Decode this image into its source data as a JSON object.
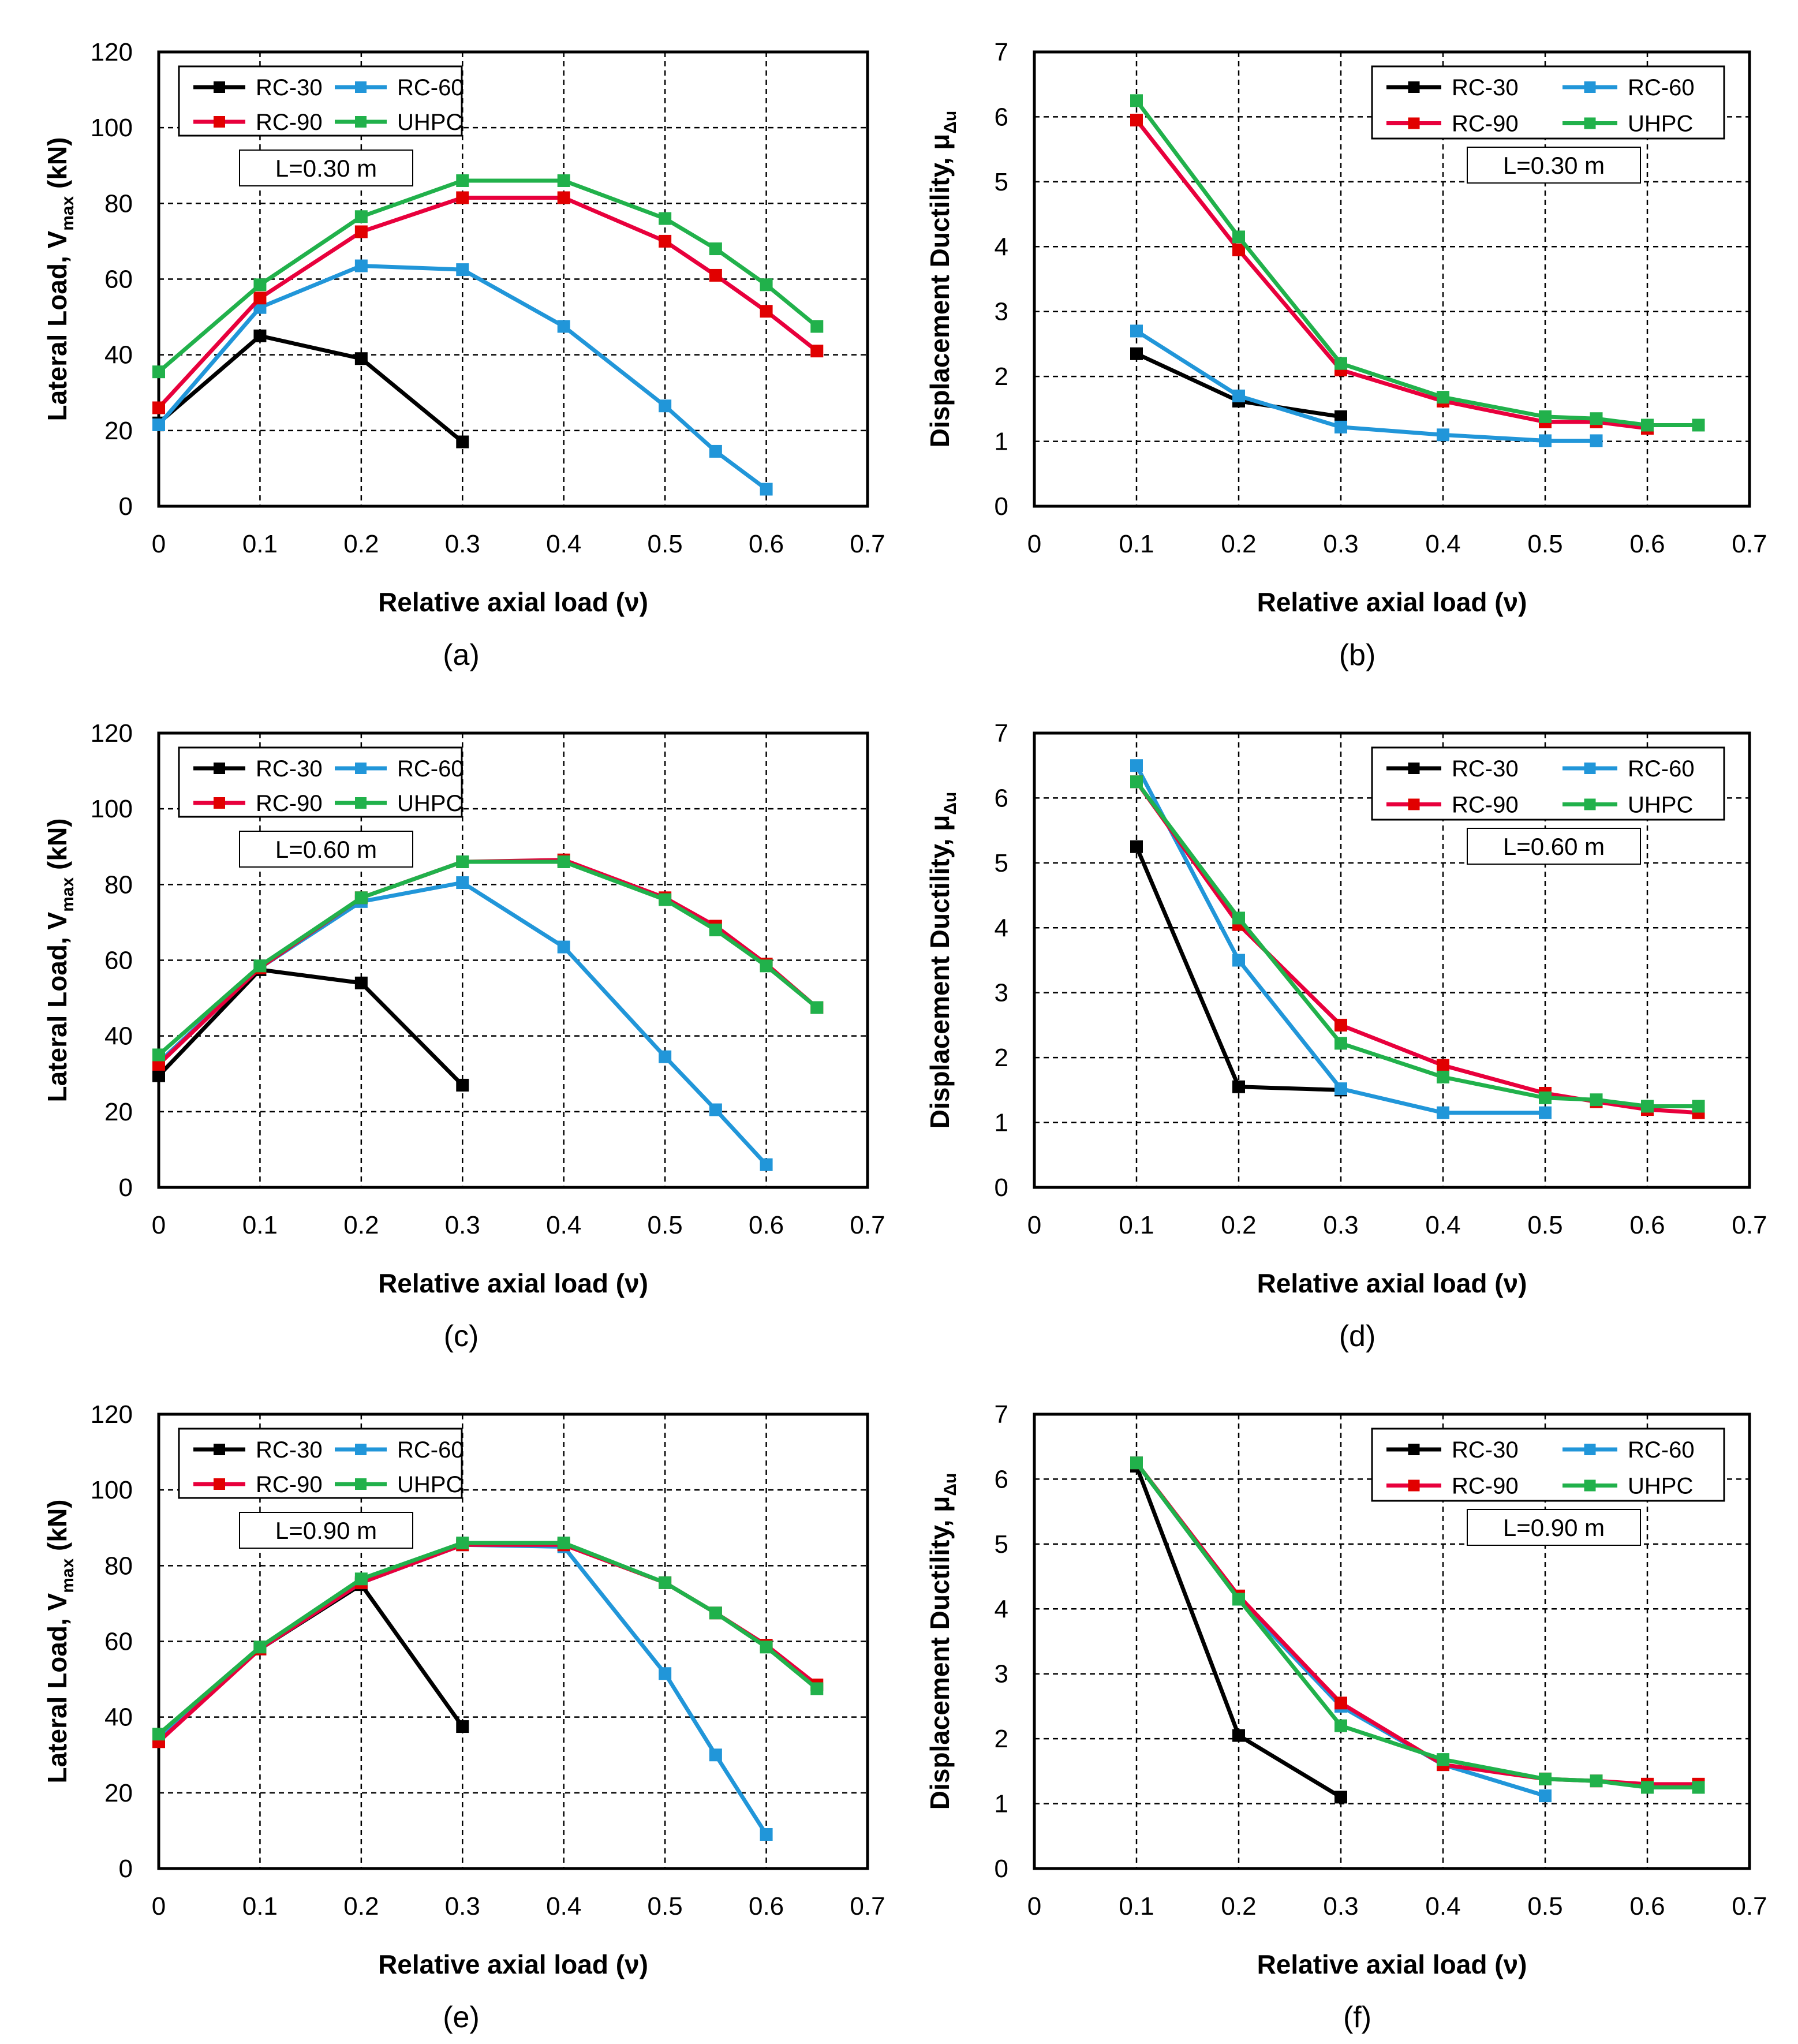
{
  "colors": {
    "RC-30": "#000000",
    "RC-60": "#2196d9",
    "RC-90": "#e8003c",
    "UHPC": "#21b14b",
    "marker_RC-90": "#e10000"
  },
  "chart_data": [
    {
      "id": "a",
      "caption": "(a)",
      "type": "line",
      "title": "",
      "xlabel": "Relative axial load (ν)",
      "ylabel_main": "Lateral Load, V",
      "ylabel_sub": "max",
      "ylabel_tail": " (kN)",
      "xlim": [
        0,
        0.7
      ],
      "ylim": [
        0,
        120
      ],
      "xticks": [
        "0",
        "0.1",
        "0.2",
        "0.3",
        "0.4",
        "0.5",
        "0.6",
        "0.7"
      ],
      "yticks": [
        "0",
        "20",
        "40",
        "60",
        "80",
        "100",
        "120"
      ],
      "annotation": "L=0.30 m",
      "legend": [
        "RC-30",
        "RC-60",
        "RC-90",
        "UHPC"
      ],
      "series": [
        {
          "name": "RC-30",
          "x": [
            0,
            0.1,
            0.2,
            0.3
          ],
          "y": [
            22,
            45,
            39,
            17
          ]
        },
        {
          "name": "RC-60",
          "x": [
            0,
            0.1,
            0.2,
            0.3,
            0.4,
            0.5,
            0.55,
            0.6
          ],
          "y": [
            21.5,
            52.5,
            63.5,
            62.5,
            47.5,
            26.5,
            14.5,
            4.5
          ]
        },
        {
          "name": "RC-90",
          "x": [
            0,
            0.1,
            0.2,
            0.3,
            0.4,
            0.5,
            0.55,
            0.6,
            0.65
          ],
          "y": [
            26,
            55,
            72.5,
            81.5,
            81.5,
            70,
            61,
            51.5,
            41
          ]
        },
        {
          "name": "UHPC",
          "x": [
            0,
            0.1,
            0.2,
            0.3,
            0.4,
            0.5,
            0.55,
            0.6,
            0.65
          ],
          "y": [
            35.5,
            58.5,
            76.5,
            86,
            86,
            76,
            68,
            58.5,
            47.5
          ]
        }
      ]
    },
    {
      "id": "b",
      "caption": "(b)",
      "type": "line",
      "title": "",
      "xlabel": "Relative axial load (ν)",
      "ylabel_main": "Displacement Ductility, μ",
      "ylabel_sub": "Δu",
      "ylabel_tail": "",
      "xlim": [
        0,
        0.7
      ],
      "ylim": [
        0,
        7
      ],
      "xticks": [
        "0",
        "0.1",
        "0.2",
        "0.3",
        "0.4",
        "0.5",
        "0.6",
        "0.7"
      ],
      "yticks": [
        "0",
        "1",
        "2",
        "3",
        "4",
        "5",
        "6",
        "7"
      ],
      "annotation": "L=0.30 m",
      "legend": [
        "RC-30",
        "RC-60",
        "RC-90",
        "UHPC"
      ],
      "series": [
        {
          "name": "RC-30",
          "x": [
            0.1,
            0.2,
            0.3
          ],
          "y": [
            2.35,
            1.62,
            1.38
          ]
        },
        {
          "name": "RC-60",
          "x": [
            0.1,
            0.2,
            0.3,
            0.4,
            0.5,
            0.55
          ],
          "y": [
            2.7,
            1.7,
            1.22,
            1.1,
            1.01,
            1.01
          ]
        },
        {
          "name": "RC-90",
          "x": [
            0.1,
            0.2,
            0.3,
            0.4,
            0.5,
            0.55,
            0.6
          ],
          "y": [
            5.95,
            3.95,
            2.1,
            1.62,
            1.3,
            1.3,
            1.2
          ]
        },
        {
          "name": "UHPC",
          "x": [
            0.1,
            0.2,
            0.3,
            0.4,
            0.5,
            0.55,
            0.6,
            0.65
          ],
          "y": [
            6.25,
            4.15,
            2.2,
            1.68,
            1.38,
            1.35,
            1.25,
            1.25
          ]
        }
      ]
    },
    {
      "id": "c",
      "caption": "(c)",
      "type": "line",
      "title": "",
      "xlabel": "Relative axial load (ν)",
      "ylabel_main": "Lateral Load, V",
      "ylabel_sub": "max",
      "ylabel_tail": " (kN)",
      "xlim": [
        0,
        0.7
      ],
      "ylim": [
        0,
        120
      ],
      "xticks": [
        "0",
        "0.1",
        "0.2",
        "0.3",
        "0.4",
        "0.5",
        "0.6",
        "0.7"
      ],
      "yticks": [
        "0",
        "20",
        "40",
        "60",
        "80",
        "100",
        "120"
      ],
      "annotation": "L=0.60 m",
      "legend": [
        "RC-30",
        "RC-60",
        "RC-90",
        "UHPC"
      ],
      "series": [
        {
          "name": "RC-30",
          "x": [
            0,
            0.1,
            0.2,
            0.3
          ],
          "y": [
            29.5,
            57.5,
            54,
            27
          ]
        },
        {
          "name": "RC-60",
          "x": [
            0,
            0.1,
            0.2,
            0.3,
            0.4,
            0.5,
            0.55,
            0.6
          ],
          "y": [
            33,
            58,
            75.5,
            80.5,
            63.5,
            34.5,
            20.5,
            6
          ]
        },
        {
          "name": "RC-90",
          "x": [
            0,
            0.1,
            0.2,
            0.3,
            0.4,
            0.5,
            0.55,
            0.6,
            0.65
          ],
          "y": [
            32.5,
            58,
            76.5,
            86,
            86.5,
            76.5,
            69,
            59,
            47.5
          ]
        },
        {
          "name": "UHPC",
          "x": [
            0,
            0.1,
            0.2,
            0.3,
            0.4,
            0.5,
            0.55,
            0.6,
            0.65
          ],
          "y": [
            35,
            58.5,
            76.5,
            86,
            86,
            76,
            68,
            58.5,
            47.5
          ]
        }
      ]
    },
    {
      "id": "d",
      "caption": "(d)",
      "type": "line",
      "title": "",
      "xlabel": "Relative axial load (ν)",
      "ylabel_main": "Displacement Ductility, μ",
      "ylabel_sub": "Δu",
      "ylabel_tail": "",
      "xlim": [
        0,
        0.7
      ],
      "ylim": [
        0,
        7
      ],
      "xticks": [
        "0",
        "0.1",
        "0.2",
        "0.3",
        "0.4",
        "0.5",
        "0.6",
        "0.7"
      ],
      "yticks": [
        "0",
        "1",
        "2",
        "3",
        "4",
        "5",
        "6",
        "7"
      ],
      "annotation": "L=0.60 m",
      "legend": [
        "RC-30",
        "RC-60",
        "RC-90",
        "UHPC"
      ],
      "series": [
        {
          "name": "RC-30",
          "x": [
            0.1,
            0.2,
            0.3
          ],
          "y": [
            5.25,
            1.55,
            1.5
          ]
        },
        {
          "name": "RC-60",
          "x": [
            0.1,
            0.2,
            0.3,
            0.4,
            0.5
          ],
          "y": [
            6.5,
            3.5,
            1.52,
            1.15,
            1.15
          ]
        },
        {
          "name": "RC-90",
          "x": [
            0.1,
            0.2,
            0.3,
            0.4,
            0.5,
            0.55,
            0.6,
            0.65
          ],
          "y": [
            6.25,
            4.05,
            2.5,
            1.88,
            1.45,
            1.32,
            1.2,
            1.15
          ]
        },
        {
          "name": "UHPC",
          "x": [
            0.1,
            0.2,
            0.3,
            0.4,
            0.5,
            0.55,
            0.6,
            0.65
          ],
          "y": [
            6.25,
            4.15,
            2.22,
            1.7,
            1.38,
            1.35,
            1.25,
            1.25
          ]
        }
      ]
    },
    {
      "id": "e",
      "caption": "(e)",
      "type": "line",
      "title": "",
      "xlabel": "Relative axial load (ν)",
      "ylabel_main": "Lateral Load, V",
      "ylabel_sub": "max",
      "ylabel_tail": " (kN)",
      "xlim": [
        0,
        0.7
      ],
      "ylim": [
        0,
        120
      ],
      "xticks": [
        "0",
        "0.1",
        "0.2",
        "0.3",
        "0.4",
        "0.5",
        "0.6",
        "0.7"
      ],
      "yticks": [
        "0",
        "20",
        "40",
        "60",
        "80",
        "100",
        "120"
      ],
      "annotation": "L=0.90 m",
      "legend": [
        "RC-30",
        "RC-60",
        "RC-90",
        "UHPC"
      ],
      "series": [
        {
          "name": "RC-30",
          "x": [
            0,
            0.1,
            0.2,
            0.3
          ],
          "y": [
            34,
            58,
            75,
            37.5
          ]
        },
        {
          "name": "RC-60",
          "x": [
            0,
            0.1,
            0.2,
            0.3,
            0.4,
            0.5,
            0.55,
            0.6
          ],
          "y": [
            34,
            58,
            75.5,
            85.5,
            85,
            51.5,
            30,
            9
          ]
        },
        {
          "name": "RC-90",
          "x": [
            0,
            0.1,
            0.2,
            0.3,
            0.4,
            0.5,
            0.55,
            0.6,
            0.65
          ],
          "y": [
            33.5,
            58,
            75.5,
            85.5,
            85.5,
            75.5,
            67.5,
            59,
            48.5
          ]
        },
        {
          "name": "UHPC",
          "x": [
            0,
            0.1,
            0.2,
            0.3,
            0.4,
            0.5,
            0.55,
            0.6,
            0.65
          ],
          "y": [
            35.5,
            58.5,
            76.5,
            86,
            86,
            75.5,
            67.5,
            58.5,
            47.5
          ]
        }
      ]
    },
    {
      "id": "f",
      "caption": "(f)",
      "type": "line",
      "title": "",
      "xlabel": "Relative axial load (ν)",
      "ylabel_main": "Displacement Ductility, μ",
      "ylabel_sub": "Δu",
      "ylabel_tail": "",
      "xlim": [
        0,
        0.7
      ],
      "ylim": [
        0,
        7
      ],
      "xticks": [
        "0",
        "0.1",
        "0.2",
        "0.3",
        "0.4",
        "0.5",
        "0.6",
        "0.7"
      ],
      "yticks": [
        "0",
        "1",
        "2",
        "3",
        "4",
        "5",
        "6",
        "7"
      ],
      "annotation": "L=0.90 m",
      "legend": [
        "RC-30",
        "RC-60",
        "RC-90",
        "UHPC"
      ],
      "series": [
        {
          "name": "RC-30",
          "x": [
            0.1,
            0.2,
            0.3
          ],
          "y": [
            6.2,
            2.05,
            1.1
          ]
        },
        {
          "name": "RC-60",
          "x": [
            0.1,
            0.2,
            0.3,
            0.4,
            0.5
          ],
          "y": [
            6.25,
            4.15,
            2.5,
            1.6,
            1.12
          ]
        },
        {
          "name": "RC-90",
          "x": [
            0.1,
            0.2,
            0.3,
            0.4,
            0.5,
            0.55,
            0.6,
            0.65
          ],
          "y": [
            6.25,
            4.2,
            2.55,
            1.6,
            1.38,
            1.35,
            1.3,
            1.3
          ]
        },
        {
          "name": "UHPC",
          "x": [
            0.1,
            0.2,
            0.3,
            0.4,
            0.5,
            0.55,
            0.6,
            0.65
          ],
          "y": [
            6.25,
            4.15,
            2.2,
            1.68,
            1.38,
            1.35,
            1.25,
            1.25
          ]
        }
      ]
    }
  ]
}
